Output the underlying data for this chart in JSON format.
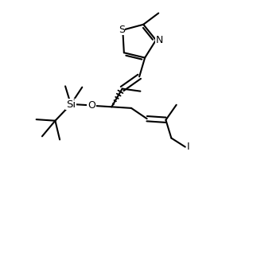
{
  "bg_color": "#ffffff",
  "line_color": "#000000",
  "line_width": 1.5,
  "font_size": 9,
  "figsize": [
    3.18,
    3.18
  ],
  "dpi": 100,
  "xlim": [
    0,
    10
  ],
  "ylim": [
    0,
    10
  ]
}
